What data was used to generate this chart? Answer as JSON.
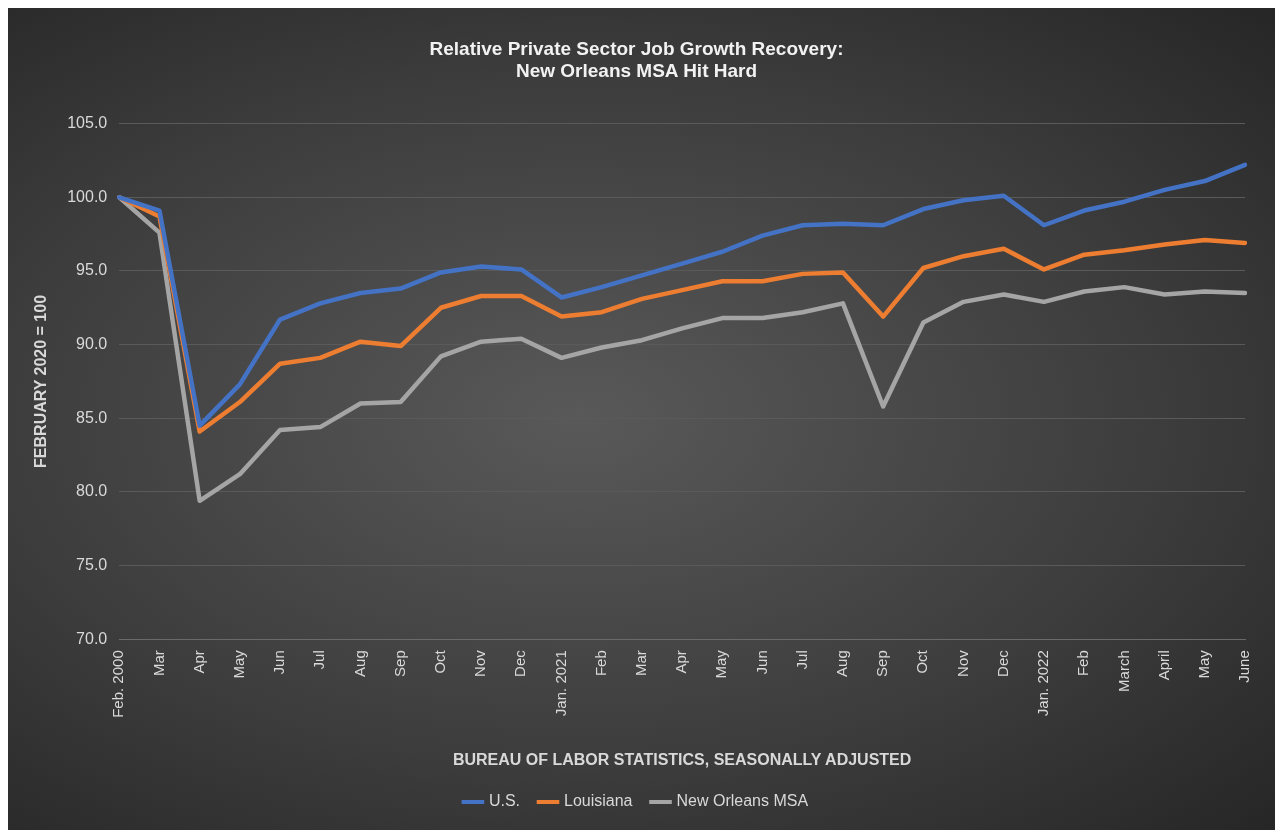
{
  "chart_data": {
    "type": "line",
    "title": "Relative Private Sector Job Growth Recovery:\nNew Orleans MSA Hit Hard",
    "xlabel": "BUREAU OF LABOR STATISTICS, SEASONALLY ADJUSTED",
    "ylabel": "FEBRUARY 2020 = 100",
    "categories": [
      "Feb. 2000",
      "Mar",
      "Apr",
      "May",
      "Jun",
      "Jul",
      "Aug",
      "Sep",
      "Oct",
      "Nov",
      "Dec",
      "Jan. 2021",
      "Feb",
      "Mar",
      "Apr",
      "May",
      "Jun",
      "Jul",
      "Aug",
      "Sep",
      "Oct",
      "Nov",
      "Dec",
      "Jan. 2022",
      "Feb",
      "March",
      "April",
      "May",
      "June"
    ],
    "series": [
      {
        "name": "U.S.",
        "color": "#4472c4",
        "values": [
          100,
          99.1,
          84.5,
          87.3,
          91.7,
          92.8,
          93.5,
          93.8,
          94.9,
          95.3,
          95.1,
          93.2,
          93.9,
          94.7,
          95.5,
          96.3,
          97.4,
          98.1,
          98.2,
          98.1,
          99.2,
          99.8,
          100.1,
          98.1,
          99.1,
          99.7,
          100.5,
          101.1,
          102.2
        ]
      },
      {
        "name": "Louisiana",
        "color": "#ed7d31",
        "values": [
          100,
          98.7,
          84.1,
          86.1,
          88.7,
          89.1,
          90.2,
          89.9,
          92.5,
          93.3,
          93.3,
          91.9,
          92.2,
          93.1,
          93.7,
          94.3,
          94.3,
          94.8,
          94.9,
          91.9,
          95.2,
          96.0,
          96.5,
          95.1,
          96.1,
          96.4,
          96.8,
          97.1,
          96.9
        ]
      },
      {
        "name": "New Orleans MSA",
        "color": "#a5a5a5",
        "values": [
          100,
          97.6,
          79.4,
          81.2,
          84.2,
          84.4,
          86.0,
          86.1,
          89.2,
          90.2,
          90.4,
          89.1,
          89.8,
          90.3,
          91.1,
          91.8,
          91.8,
          92.2,
          92.8,
          85.8,
          91.5,
          92.9,
          93.4,
          92.9,
          93.6,
          93.9,
          93.4,
          93.6,
          93.5
        ]
      }
    ],
    "ylim": [
      70,
      105
    ],
    "yticks": [
      {
        "value": 70,
        "label": "70.0"
      },
      {
        "value": 75,
        "label": "75.0"
      },
      {
        "value": 80,
        "label": "80.0"
      },
      {
        "value": 85,
        "label": "85.0"
      },
      {
        "value": 90,
        "label": "90.0"
      },
      {
        "value": 95,
        "label": "95.0"
      },
      {
        "value": 100,
        "label": "100.0"
      },
      {
        "value": 105,
        "label": "105.0"
      }
    ],
    "grid": "y",
    "legend": "bottom",
    "marker": "none",
    "line_style": "solid"
  }
}
